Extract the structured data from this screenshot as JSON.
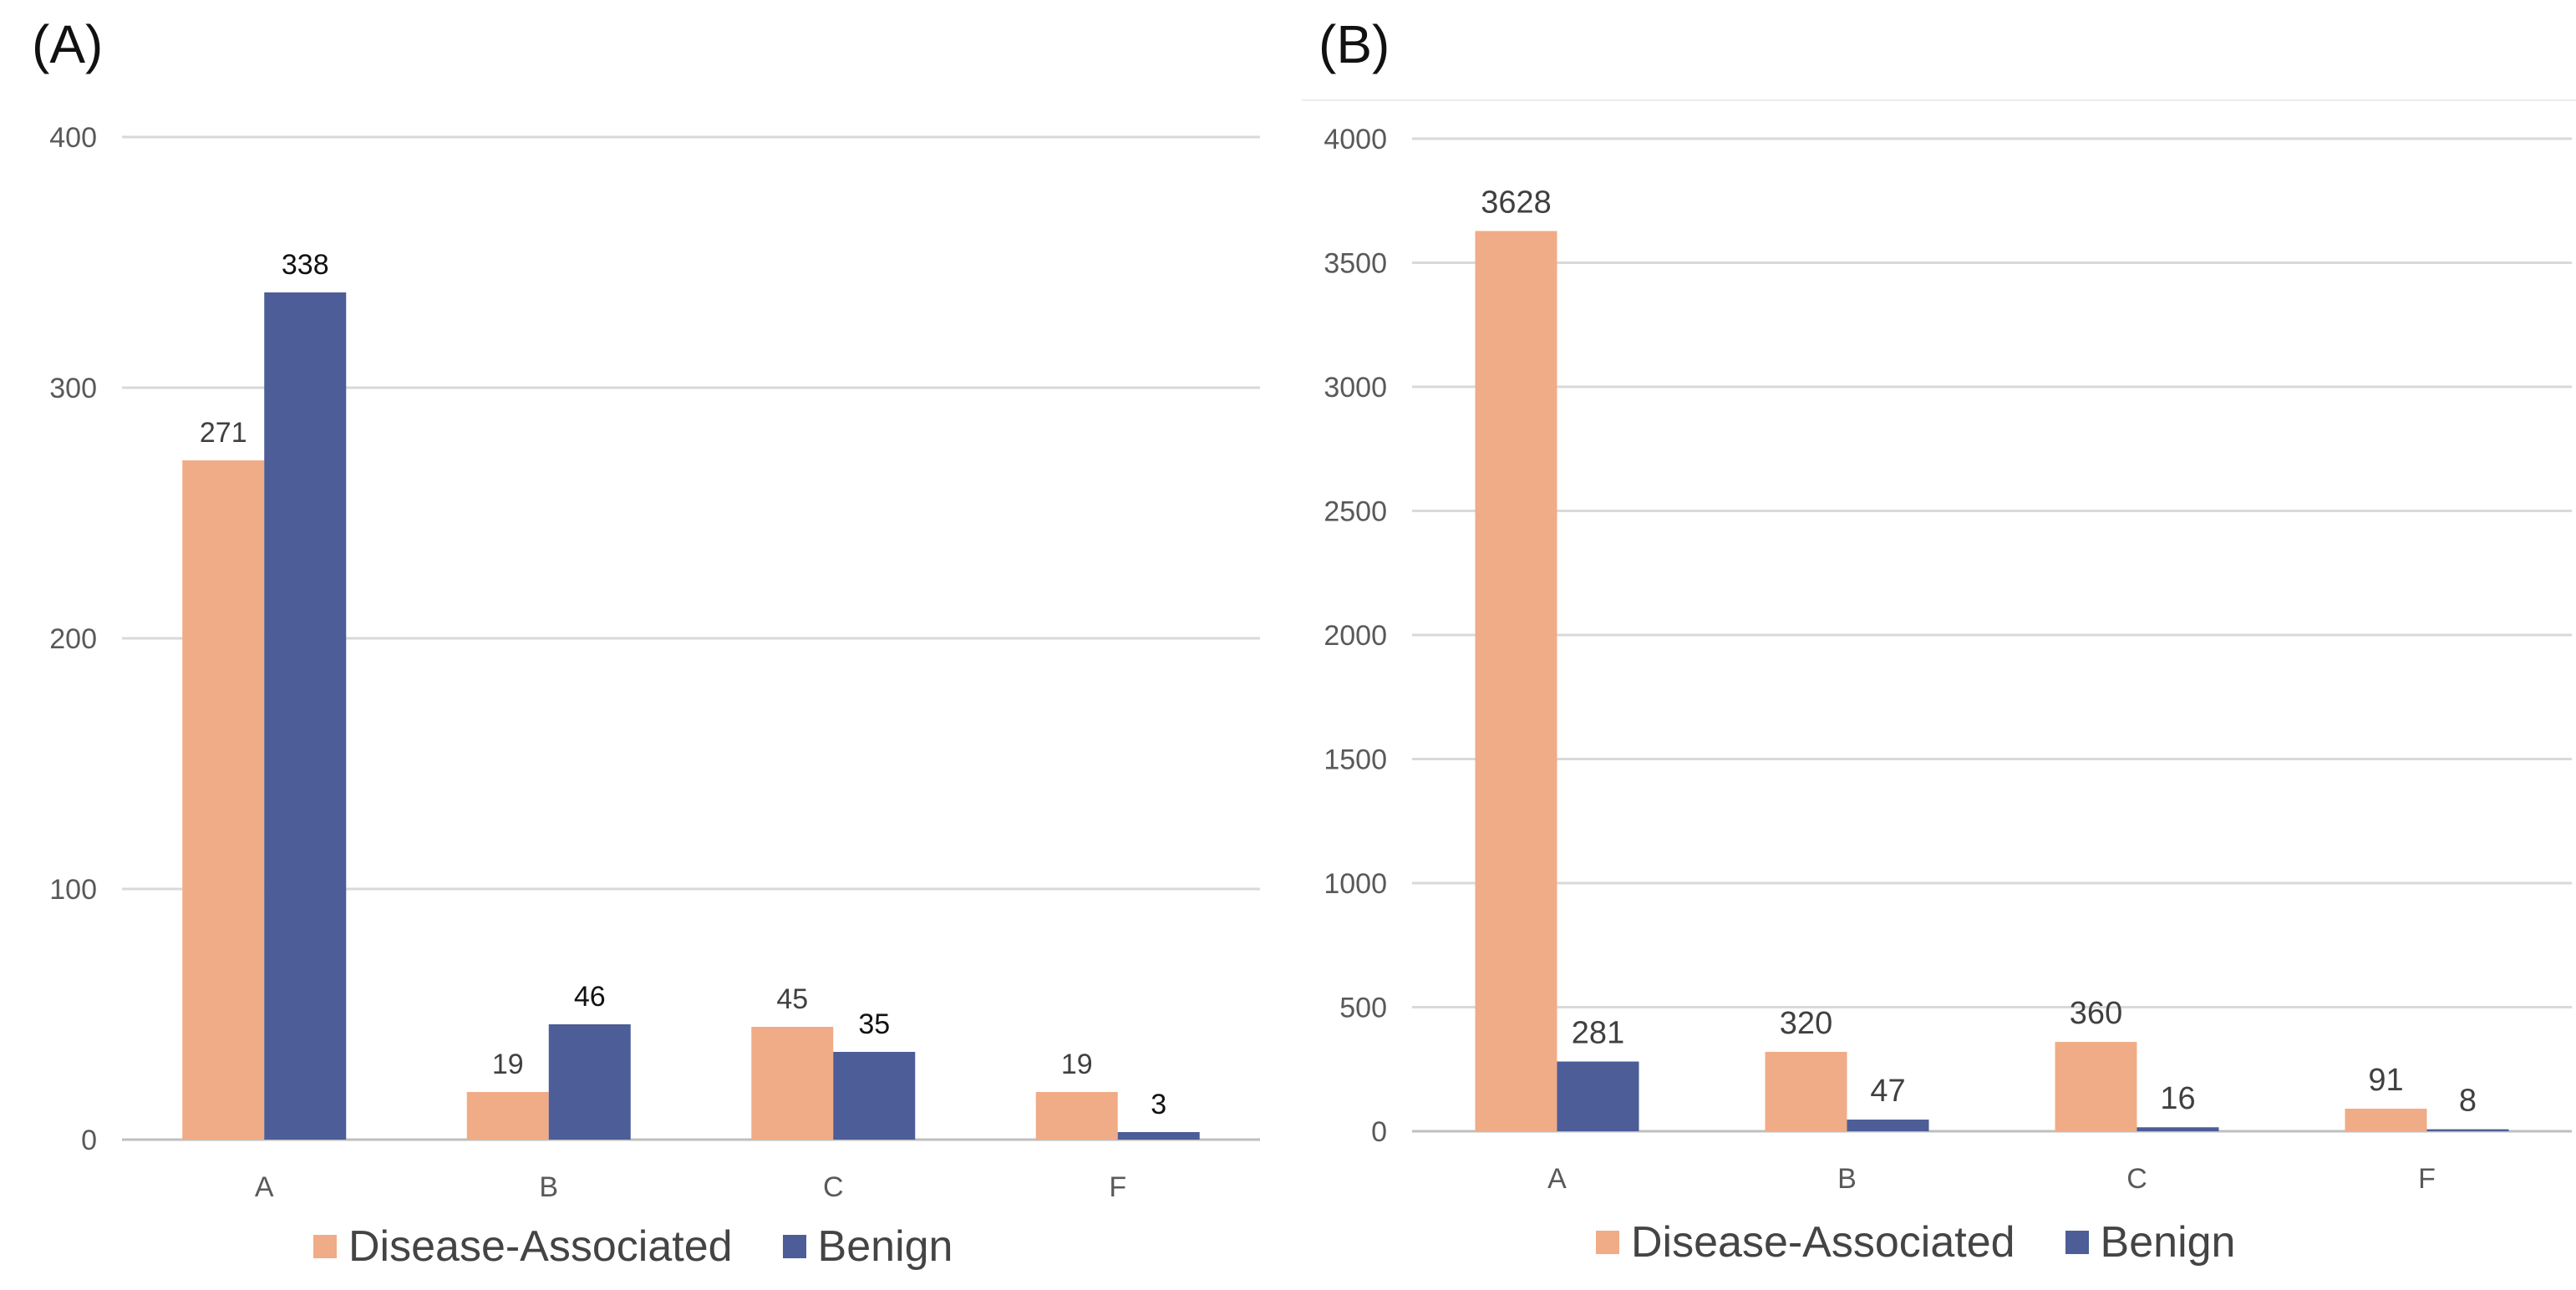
{
  "colors": {
    "disease": "#F0AC86",
    "benign": "#4C5D97",
    "grid": "#D9D9D9",
    "axis": "#BFBFBF",
    "tick": "#595959"
  },
  "panels": [
    {
      "label": "(A)"
    },
    {
      "label": "(B)"
    }
  ],
  "legend": {
    "disease": "Disease-Associated",
    "benign": "Benign"
  },
  "chart_data": [
    {
      "type": "bar",
      "title": "",
      "categories": [
        "A",
        "B",
        "C",
        "F"
      ],
      "series": [
        {
          "name": "Disease-Associated",
          "values": [
            271,
            19,
            45,
            19
          ]
        },
        {
          "name": "Benign",
          "values": [
            338,
            46,
            35,
            3
          ]
        }
      ],
      "ylim": [
        0,
        400
      ],
      "yticks": [
        0,
        100,
        200,
        300,
        400
      ],
      "xlabel": "",
      "ylabel": "",
      "grid": true,
      "legend_position": "bottom"
    },
    {
      "type": "bar",
      "title": "",
      "categories": [
        "A",
        "B",
        "C",
        "F"
      ],
      "series": [
        {
          "name": "Disease-Associated",
          "values": [
            3628,
            320,
            360,
            91
          ]
        },
        {
          "name": "Benign",
          "values": [
            281,
            47,
            16,
            8
          ]
        }
      ],
      "ylim": [
        0,
        4000
      ],
      "yticks": [
        0,
        500,
        1000,
        1500,
        2000,
        2500,
        3000,
        3500,
        4000
      ],
      "xlabel": "",
      "ylabel": "",
      "grid": true,
      "legend_position": "bottom"
    }
  ]
}
